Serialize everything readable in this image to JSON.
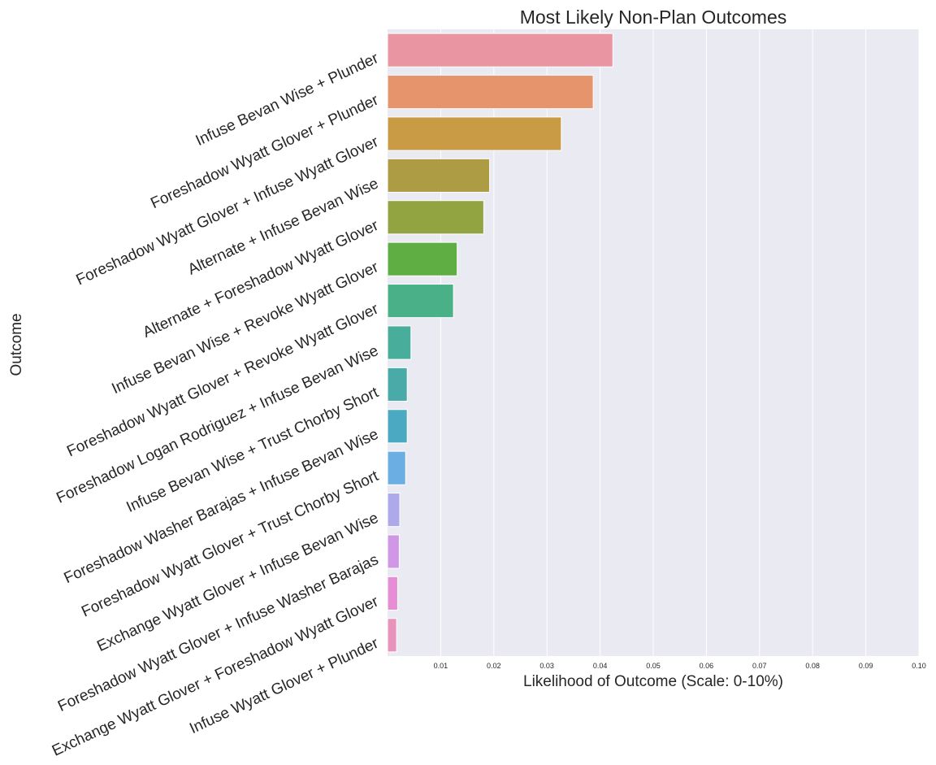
{
  "chart_data": {
    "type": "bar",
    "orientation": "horizontal",
    "title": "Most Likely Non-Plan Outcomes",
    "xlabel": "Likelihood of Outcome (Scale: 0-10%)",
    "ylabel": "Outcome",
    "xlim": [
      0,
      0.1
    ],
    "x_ticks": [
      "0.01",
      "0.02",
      "0.03",
      "0.04",
      "0.05",
      "0.06",
      "0.07",
      "0.08",
      "0.09",
      "0.10"
    ],
    "grid": true,
    "categories": [
      "Infuse Bevan Wise + Plunder",
      "Foreshadow Wyatt Glover + Plunder",
      "Foreshadow Wyatt Glover + Infuse Wyatt Glover",
      "Alternate + Infuse Bevan Wise",
      "Alternate + Foreshadow Wyatt Glover",
      "Infuse Bevan Wise + Revoke Wyatt Glover",
      "Foreshadow Wyatt Glover + Revoke Wyatt Glover",
      "Foreshadow Logan Rodriguez + Infuse Bevan Wise",
      "Infuse Bevan Wise + Trust Chorby Short",
      "Foreshadow Washer Barajas + Infuse Bevan Wise",
      "Foreshadow Wyatt Glover + Trust Chorby Short",
      "Exchange Wyatt Glover + Infuse Bevan Wise",
      "Foreshadow Wyatt Glover + Infuse Washer Barajas",
      "Exchange Wyatt Glover + Foreshadow Wyatt Glover",
      "Infuse Wyatt Glover + Plunder"
    ],
    "values": [
      0.0424,
      0.0387,
      0.0327,
      0.0192,
      0.0181,
      0.0131,
      0.0124,
      0.0044,
      0.0037,
      0.0037,
      0.0034,
      0.0023,
      0.0022,
      0.0019,
      0.0017
    ],
    "colors": [
      "#ea96a2",
      "#e6946c",
      "#c99b45",
      "#ad9c43",
      "#92a342",
      "#5fae44",
      "#49b087",
      "#49ad9c",
      "#4aaaa8",
      "#4ba9c2",
      "#6aaee3",
      "#aeaaea",
      "#cf97e6",
      "#e68ed5",
      "#e893bc"
    ]
  }
}
